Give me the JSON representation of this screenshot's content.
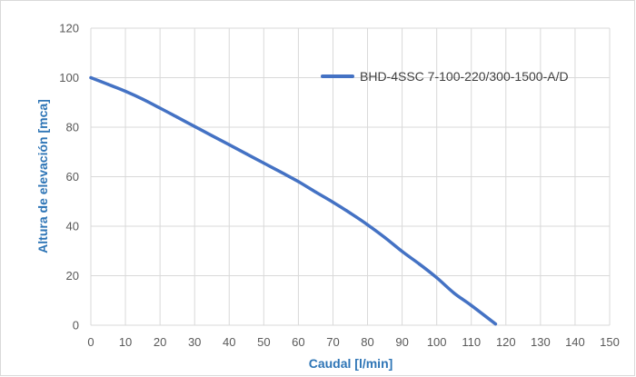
{
  "chart_data": {
    "type": "line",
    "title": "",
    "xlabel": "Caudal [l/min]",
    "ylabel": "Altura de elevación [mca]",
    "xlim": [
      0,
      150
    ],
    "ylim": [
      0,
      120
    ],
    "x_ticks": [
      0,
      10,
      20,
      30,
      40,
      50,
      60,
      70,
      80,
      90,
      100,
      110,
      120,
      130,
      140,
      150
    ],
    "y_ticks": [
      0,
      20,
      40,
      60,
      80,
      100,
      120
    ],
    "grid": true,
    "legend_position": "top-right",
    "series": [
      {
        "name": "BHD-4SSC 7-100-220/300-1500-A/D",
        "color": "#4472c4",
        "x": [
          0,
          5,
          10,
          15,
          20,
          25,
          30,
          35,
          40,
          45,
          50,
          55,
          60,
          65,
          70,
          75,
          80,
          85,
          90,
          95,
          100,
          105,
          110,
          117
        ],
        "y": [
          100,
          97.3,
          94.5,
          91.3,
          87.7,
          84.0,
          80.3,
          76.6,
          72.9,
          69.2,
          65.5,
          61.8,
          58.0,
          53.8,
          49.7,
          45.3,
          40.6,
          35.4,
          29.8,
          24.7,
          19.2,
          13.0,
          8.0,
          0.5
        ]
      }
    ],
    "colors": {
      "axis_title": "#2e75b6",
      "tick_label": "#595959",
      "grid": "#d9d9d9",
      "legend_text": "#404040"
    }
  }
}
